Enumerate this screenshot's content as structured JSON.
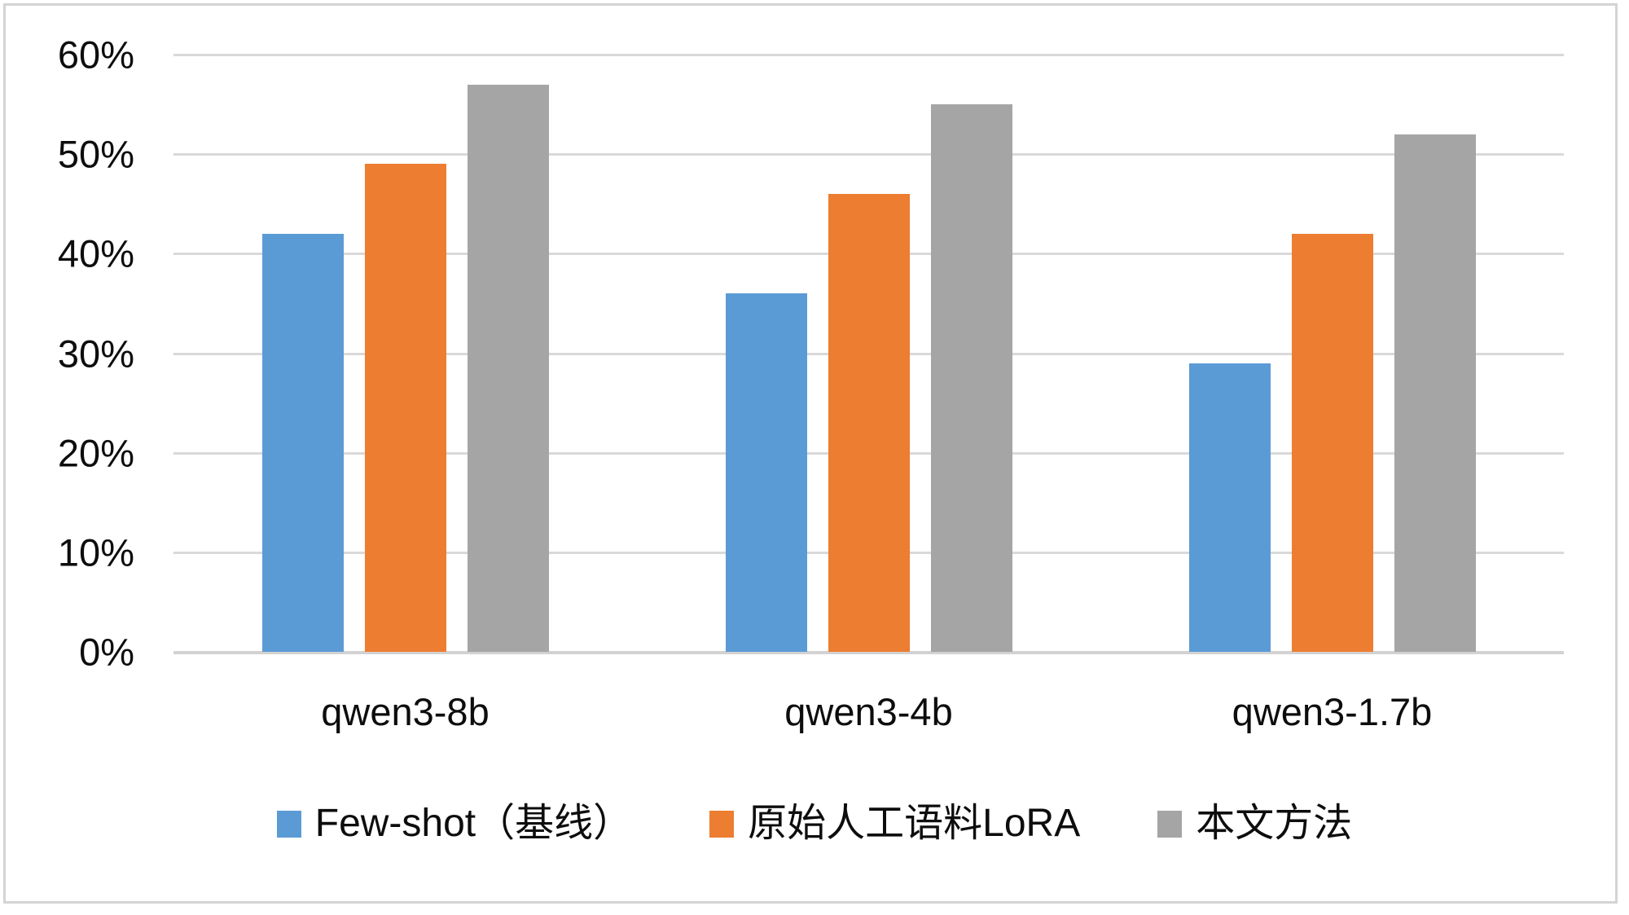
{
  "chart_data": {
    "type": "bar",
    "title": "",
    "xlabel": "",
    "ylabel": "",
    "categories": [
      "qwen3-8b",
      "qwen3-4b",
      "qwen3-1.7b"
    ],
    "series": [
      {
        "name": "Few-shot（基线）",
        "color": "#5B9BD5",
        "values": [
          42,
          36,
          29
        ]
      },
      {
        "name": "原始人工语料LoRA",
        "color": "#ED7D31",
        "values": [
          49,
          46,
          42
        ]
      },
      {
        "name": "本文方法",
        "color": "#A5A5A5",
        "values": [
          57,
          55,
          52
        ]
      }
    ],
    "ylim": [
      0,
      60
    ],
    "ytick_values": [
      0,
      10,
      20,
      30,
      40,
      50,
      60
    ],
    "ytick_labels": [
      "0%",
      "10%",
      "20%",
      "30%",
      "40%",
      "50%",
      "60%"
    ],
    "grid": true,
    "gridline_color": "#D9D9D9",
    "axis_line_color": "#D2D2D2",
    "legend_position": "bottom"
  },
  "colors": {
    "background": "#FFFFFF",
    "border": "#D4D4D4",
    "text": "#0D0D0D"
  }
}
